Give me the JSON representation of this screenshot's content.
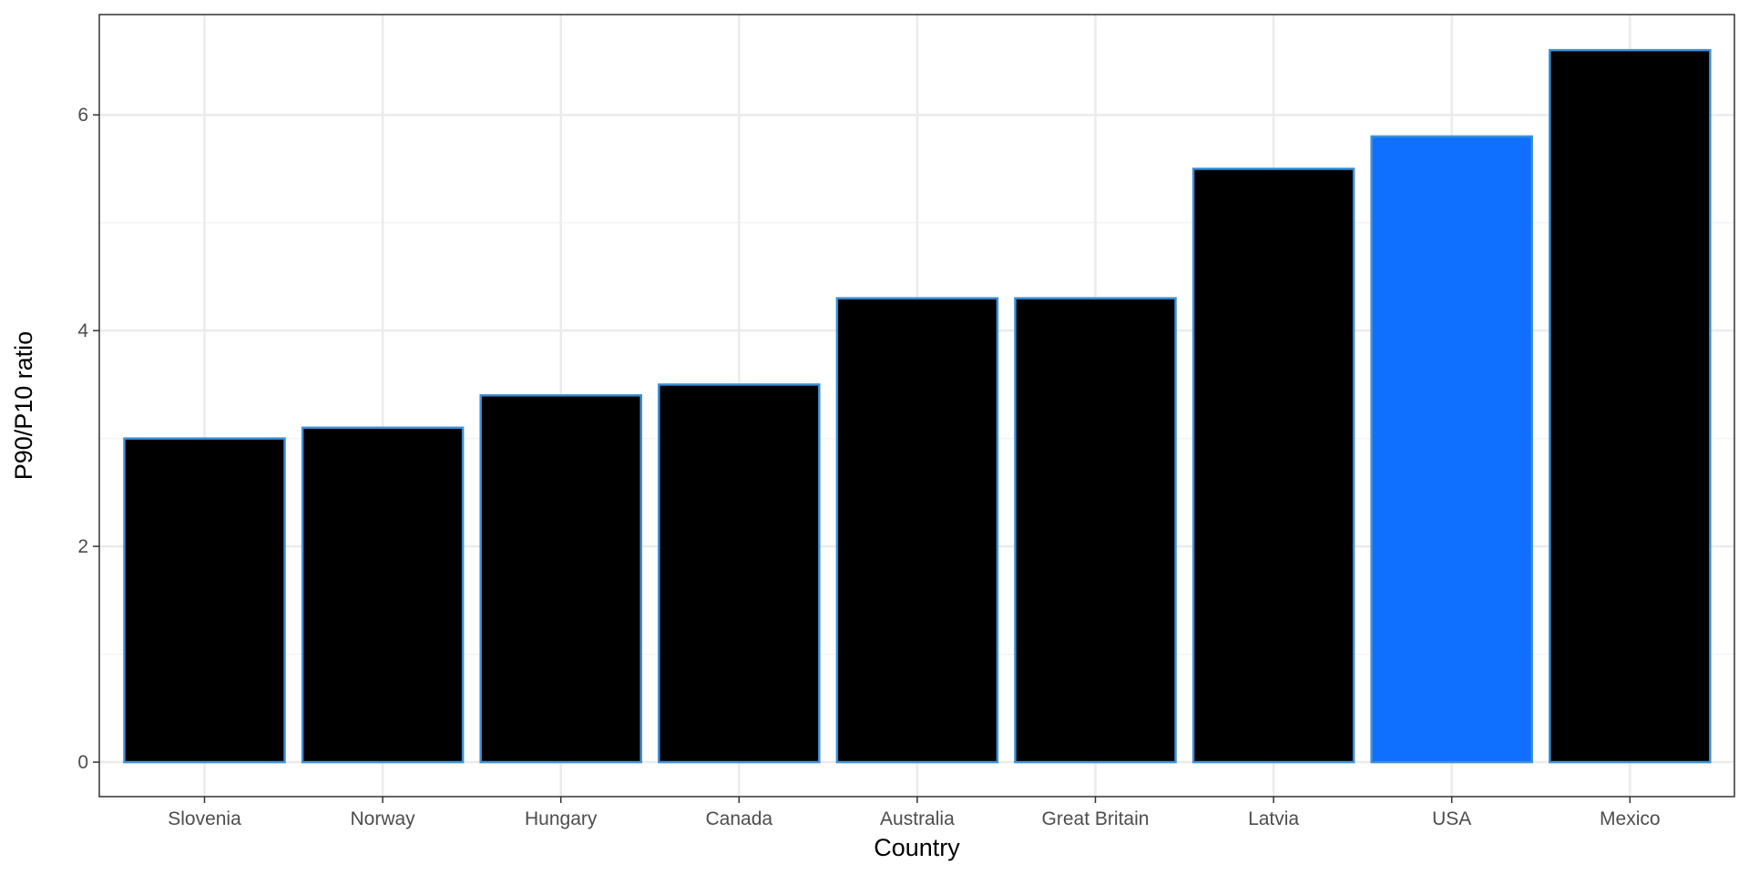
{
  "chart_data": {
    "type": "bar",
    "xlabel": "Country",
    "ylabel": "P90/P10 ratio",
    "categories": [
      "Slovenia",
      "Norway",
      "Hungary",
      "Canada",
      "Australia",
      "Great Britain",
      "Latvia",
      "USA",
      "Mexico"
    ],
    "values": [
      3.0,
      3.1,
      3.4,
      3.5,
      4.3,
      4.3,
      5.5,
      5.8,
      6.6
    ],
    "highlighted_category": "USA",
    "ylim": [
      -0.32,
      6.93
    ],
    "y_ticks": [
      0,
      2,
      4,
      6
    ],
    "grid": true,
    "legend": "none",
    "colors": {
      "bar_fill": "#000000",
      "highlight_fill": "#0f6fff",
      "bar_outline": "#3d8fd6",
      "panel_border": "#333333",
      "grid_major": "#ebebeb",
      "grid_minor": "#f3f3f3"
    }
  }
}
